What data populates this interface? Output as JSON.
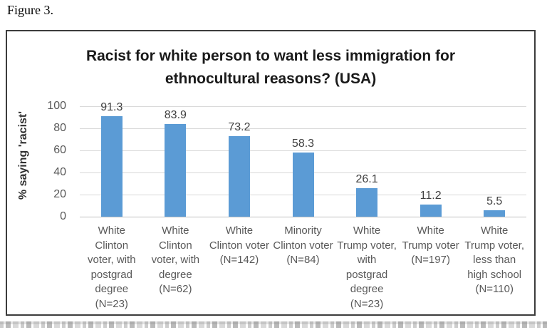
{
  "figure_label": "Figure 3.",
  "chart_data": {
    "type": "bar",
    "title": "Racist for white person to want less immigration for ethnocultural reasons? (USA)",
    "title_lines": [
      "Racist for white person to want less immigration for",
      "ethnocultural reasons? (USA)"
    ],
    "ylabel": "% saying 'racist'",
    "xlabel": "",
    "ylim": [
      0,
      100
    ],
    "yticks": [
      0,
      20,
      40,
      60,
      80,
      100
    ],
    "grid": true,
    "legend": "none",
    "categories": [
      "White Clinton voter, with postgrad degree (N=23)",
      "White Clinton voter, with degree (N=62)",
      "White Clinton voter (N=142)",
      "Minority Clinton voter (N=84)",
      "White Trump voter, with postgrad degree (N=23)",
      "White Trump voter (N=197)",
      "White Trump voter, less than high school (N=110)"
    ],
    "category_lines": [
      [
        "White",
        "Clinton",
        "voter, with",
        "postgrad",
        "degree",
        "(N=23)"
      ],
      [
        "White",
        "Clinton",
        "voter, with",
        "degree",
        "(N=62)"
      ],
      [
        "White",
        "Clinton voter",
        "(N=142)"
      ],
      [
        "Minority",
        "Clinton voter",
        "(N=84)"
      ],
      [
        "White",
        "Trump voter,",
        "with",
        "postgrad",
        "degree",
        "(N=23)"
      ],
      [
        "White",
        "Trump voter",
        "(N=197)"
      ],
      [
        "White",
        "Trump voter,",
        "less than",
        "high school",
        "(N=110)"
      ]
    ],
    "values": [
      91.3,
      83.9,
      73.2,
      58.3,
      26.1,
      11.2,
      5.5
    ],
    "value_labels": [
      "91.3",
      "83.9",
      "73.2",
      "58.3",
      "26.1",
      "11.2",
      "5.5"
    ],
    "colors": {
      "bar": "#5B9BD5",
      "gridline": "#D9D9D9",
      "axis_line": "#BFBFBF",
      "value_label": "#404040",
      "tick_label": "#595959",
      "category_label": "#595959",
      "title": "#1a1a1a",
      "border": "#3c3c3c"
    }
  }
}
